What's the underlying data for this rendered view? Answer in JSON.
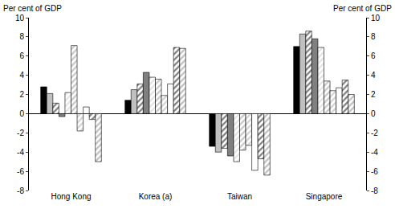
{
  "chart_data": {
    "type": "bar",
    "y_label": "Per cent of GDP",
    "y2_label": "Per cent of GDP",
    "categories": [
      "Hong Kong",
      "Korea (a)",
      "Taiwan",
      "Singapore"
    ],
    "series": [
      {
        "color": "#000000",
        "marker": "solid",
        "values": [
          2.8,
          1.4,
          -3.4,
          7.0
        ]
      },
      {
        "color": "#c0c0c0",
        "marker": "solid",
        "values": [
          2.1,
          2.5,
          -4.0,
          8.3
        ]
      },
      {
        "color": "#000000",
        "marker": "hatch",
        "values": [
          1.1,
          3.1,
          -3.6,
          8.6
        ]
      },
      {
        "color": "#808080",
        "marker": "solid",
        "values": [
          -0.3,
          4.3,
          -4.4,
          7.8
        ]
      },
      {
        "color": "#c8c8c8",
        "marker": "hatch",
        "values": [
          2.2,
          3.8,
          -5.0,
          6.9
        ]
      },
      {
        "color": "#909090",
        "marker": "hatch",
        "values": [
          7.1,
          3.6,
          -3.8,
          3.4
        ]
      },
      {
        "color": "#a8a8a8",
        "marker": "hatch",
        "values": [
          -1.8,
          1.9,
          -3.3,
          2.4
        ]
      },
      {
        "color": "#ffffff",
        "marker": "solid",
        "values": [
          0.7,
          3.1,
          -5.9,
          2.7
        ]
      },
      {
        "color": "#000000",
        "marker": "hatch",
        "values": [
          -0.6,
          6.9,
          -4.7,
          3.5
        ]
      },
      {
        "color": "#808080",
        "marker": "hatch",
        "values": [
          -5.0,
          6.8,
          -6.4,
          2.0
        ]
      }
    ],
    "ylim": [
      -8,
      10
    ],
    "yticks": [
      -8,
      -6,
      -4,
      -2,
      0,
      2,
      4,
      6,
      8,
      10
    ],
    "y2lim": [
      -8,
      10
    ],
    "y2ticks": [
      -8,
      -6,
      -4,
      -2,
      0,
      2,
      4,
      6,
      8,
      10
    ],
    "grid": false
  }
}
